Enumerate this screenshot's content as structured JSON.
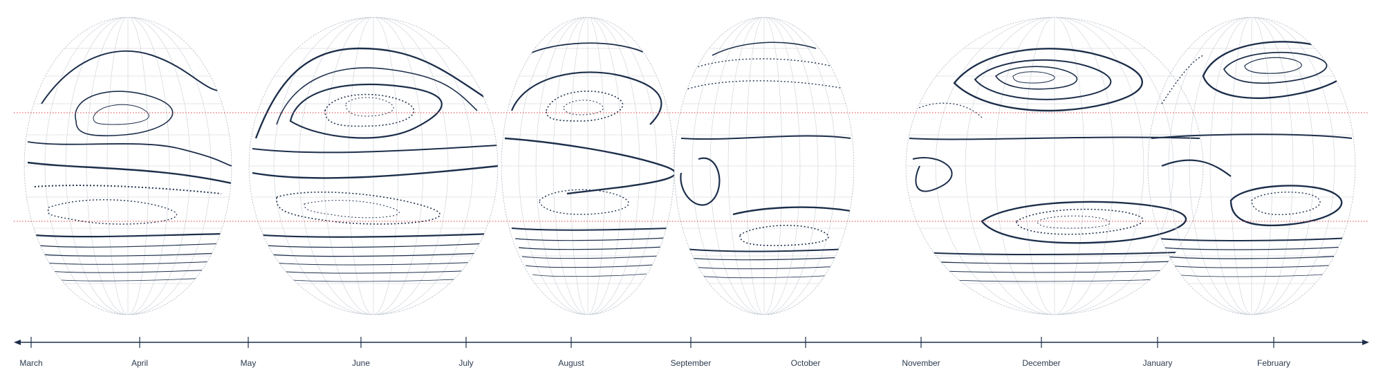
{
  "timeline": {
    "months": [
      {
        "label": "March"
      },
      {
        "label": "April"
      },
      {
        "label": "May"
      },
      {
        "label": "June"
      },
      {
        "label": "July"
      },
      {
        "label": "August"
      },
      {
        "label": "September"
      },
      {
        "label": "October"
      },
      {
        "label": "November"
      },
      {
        "label": "December"
      },
      {
        "label": "January"
      },
      {
        "label": "February"
      }
    ]
  },
  "map": {
    "globe_count": 6,
    "graticule_color": "#c9ced6",
    "contour_color": "#1c2e4a",
    "reference_line_color": "#e0393e",
    "reference_line_style": "dotted"
  }
}
